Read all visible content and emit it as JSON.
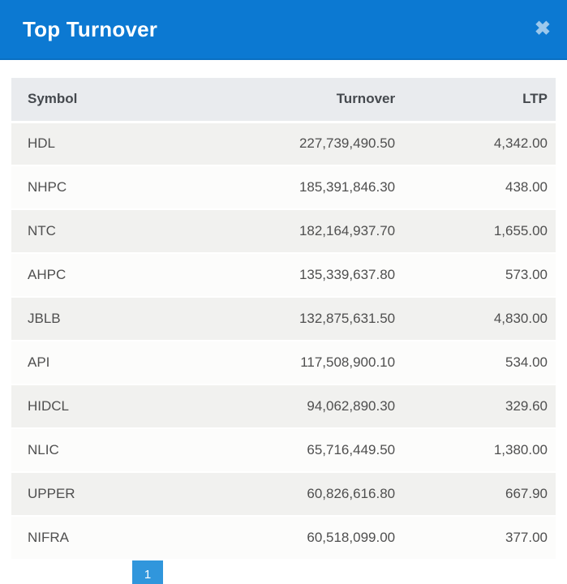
{
  "modal": {
    "title": "Top Turnover",
    "close_label": "✖"
  },
  "table": {
    "columns": [
      "Symbol",
      "Turnover",
      "LTP"
    ],
    "rows": [
      {
        "symbol": "HDL",
        "turnover": "227,739,490.50",
        "ltp": "4,342.00"
      },
      {
        "symbol": "NHPC",
        "turnover": "185,391,846.30",
        "ltp": "438.00"
      },
      {
        "symbol": "NTC",
        "turnover": "182,164,937.70",
        "ltp": "1,655.00"
      },
      {
        "symbol": "AHPC",
        "turnover": "135,339,637.80",
        "ltp": "573.00"
      },
      {
        "symbol": "JBLB",
        "turnover": "132,875,631.50",
        "ltp": "4,830.00"
      },
      {
        "symbol": "API",
        "turnover": "117,508,900.10",
        "ltp": "534.00"
      },
      {
        "symbol": "HIDCL",
        "turnover": "94,062,890.30",
        "ltp": "329.60"
      },
      {
        "symbol": "NLIC",
        "turnover": "65,716,449.50",
        "ltp": "1,380.00"
      },
      {
        "symbol": "UPPER",
        "turnover": "60,826,616.80",
        "ltp": "667.90"
      },
      {
        "symbol": "NIFRA",
        "turnover": "60,518,099.00",
        "ltp": "377.00"
      }
    ]
  },
  "pagination": {
    "current_page": "1"
  },
  "colors": {
    "header_bg": "#0c79d2",
    "header_border": "#0a6fc2",
    "header_text": "#ffffff",
    "close_icon": "#9cc8ec",
    "table_header_bg": "#e9ebee",
    "table_header_text": "#45494e",
    "row_odd_bg": "#f1f1ef",
    "row_even_bg": "#fcfcfb",
    "row_text": "#4f4f4f",
    "pagination_active_bg": "#3096dc"
  }
}
